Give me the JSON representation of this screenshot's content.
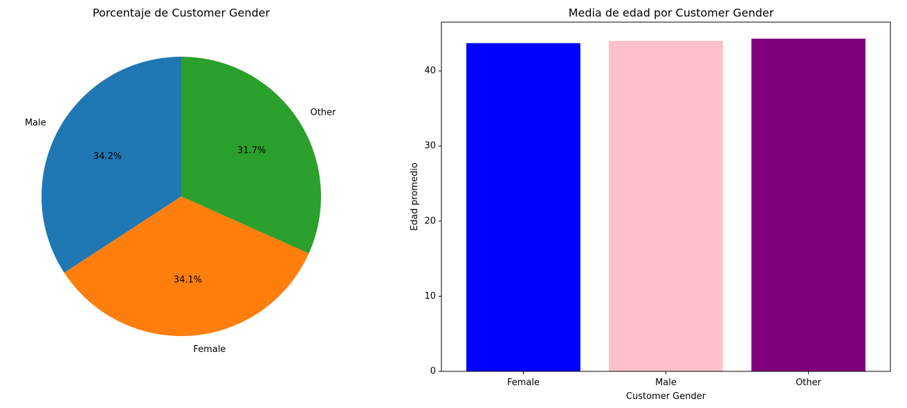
{
  "chart_data": [
    {
      "type": "pie",
      "title": "Porcentaje de Customer Gender",
      "slices": [
        {
          "label": "Male",
          "value": 34.2,
          "pct_label": "34.2%",
          "color": "#1f77b4"
        },
        {
          "label": "Female",
          "value": 34.1,
          "pct_label": "34.1%",
          "color": "#ff7f0e"
        },
        {
          "label": "Other",
          "value": 31.7,
          "pct_label": "31.7%",
          "color": "#2ca02c"
        }
      ]
    },
    {
      "type": "bar",
      "title": "Media de edad por Customer Gender",
      "xlabel": "Customer Gender",
      "ylabel": "Edad promedio",
      "categories": [
        "Female",
        "Male",
        "Other"
      ],
      "values": [
        43.7,
        44.0,
        44.3
      ],
      "colors": [
        "#0000ff",
        "#ffc0cb",
        "#800080"
      ],
      "ylim": [
        0,
        46.5
      ],
      "yticks": [
        0,
        10,
        20,
        30,
        40
      ],
      "grid": false
    }
  ]
}
